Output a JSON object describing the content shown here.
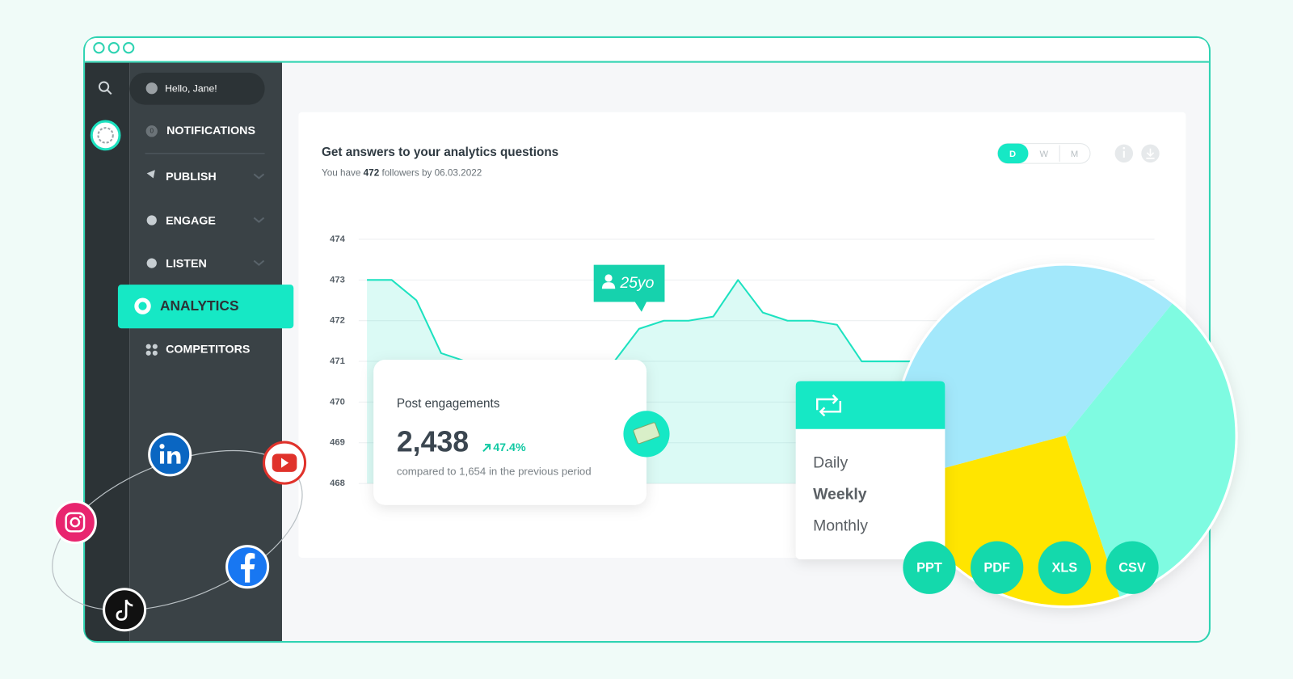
{
  "window": {
    "greeting": "Hello, Jane!",
    "notification_count": "0"
  },
  "sidebar": {
    "items": [
      "NOTIFICATIONS",
      "PUBLISH",
      "ENGAGE",
      "LISTEN",
      "ANALYTICS",
      "COMPETITORS"
    ]
  },
  "card": {
    "title": "Get answers to your analytics questions",
    "subtitle": {
      "before": "You have",
      "followers": "472",
      "after": "followers by 06.03.2022"
    },
    "periods": [
      "D",
      "W",
      "M"
    ]
  },
  "engagement": {
    "title": "Post engagements",
    "value": "2,438",
    "change": "47.4%",
    "comparison": "compared to 1,654 in the previous period"
  },
  "tag": "25yo",
  "dropdown": {
    "options": [
      "Daily",
      "Weekly",
      "Monthly"
    ]
  },
  "exports": [
    "PPT",
    "PDF",
    "XLS",
    "CSV"
  ],
  "chart_data": [
    {
      "type": "area",
      "categories": [
        null,
        null,
        null,
        null,
        null,
        null,
        null,
        null,
        null,
        null,
        null,
        null,
        null,
        null,
        null,
        null,
        null,
        null,
        null,
        null,
        null,
        null,
        null,
        null,
        null,
        null,
        null,
        null,
        null,
        null,
        null,
        null,
        null
      ],
      "values": [
        473,
        473,
        472.5,
        471.2,
        471,
        471,
        471,
        471,
        471,
        471,
        471,
        471.8,
        472,
        472,
        472.1,
        473,
        472.2,
        472,
        472,
        471.9,
        471,
        471,
        471,
        471,
        471,
        471,
        471,
        471,
        471,
        471,
        471,
        471,
        471
      ],
      "color": "#1de2c0",
      "ylim": [
        468,
        474
      ],
      "yticks": [
        468,
        469,
        470,
        471,
        472,
        473,
        474
      ],
      "grid": true
    },
    {
      "type": "pie",
      "categories": [
        null,
        null,
        null
      ],
      "values": [
        40,
        34,
        26
      ],
      "colors": [
        "#a3e8fb",
        "#7ffbe1",
        "#ffe500"
      ]
    }
  ]
}
